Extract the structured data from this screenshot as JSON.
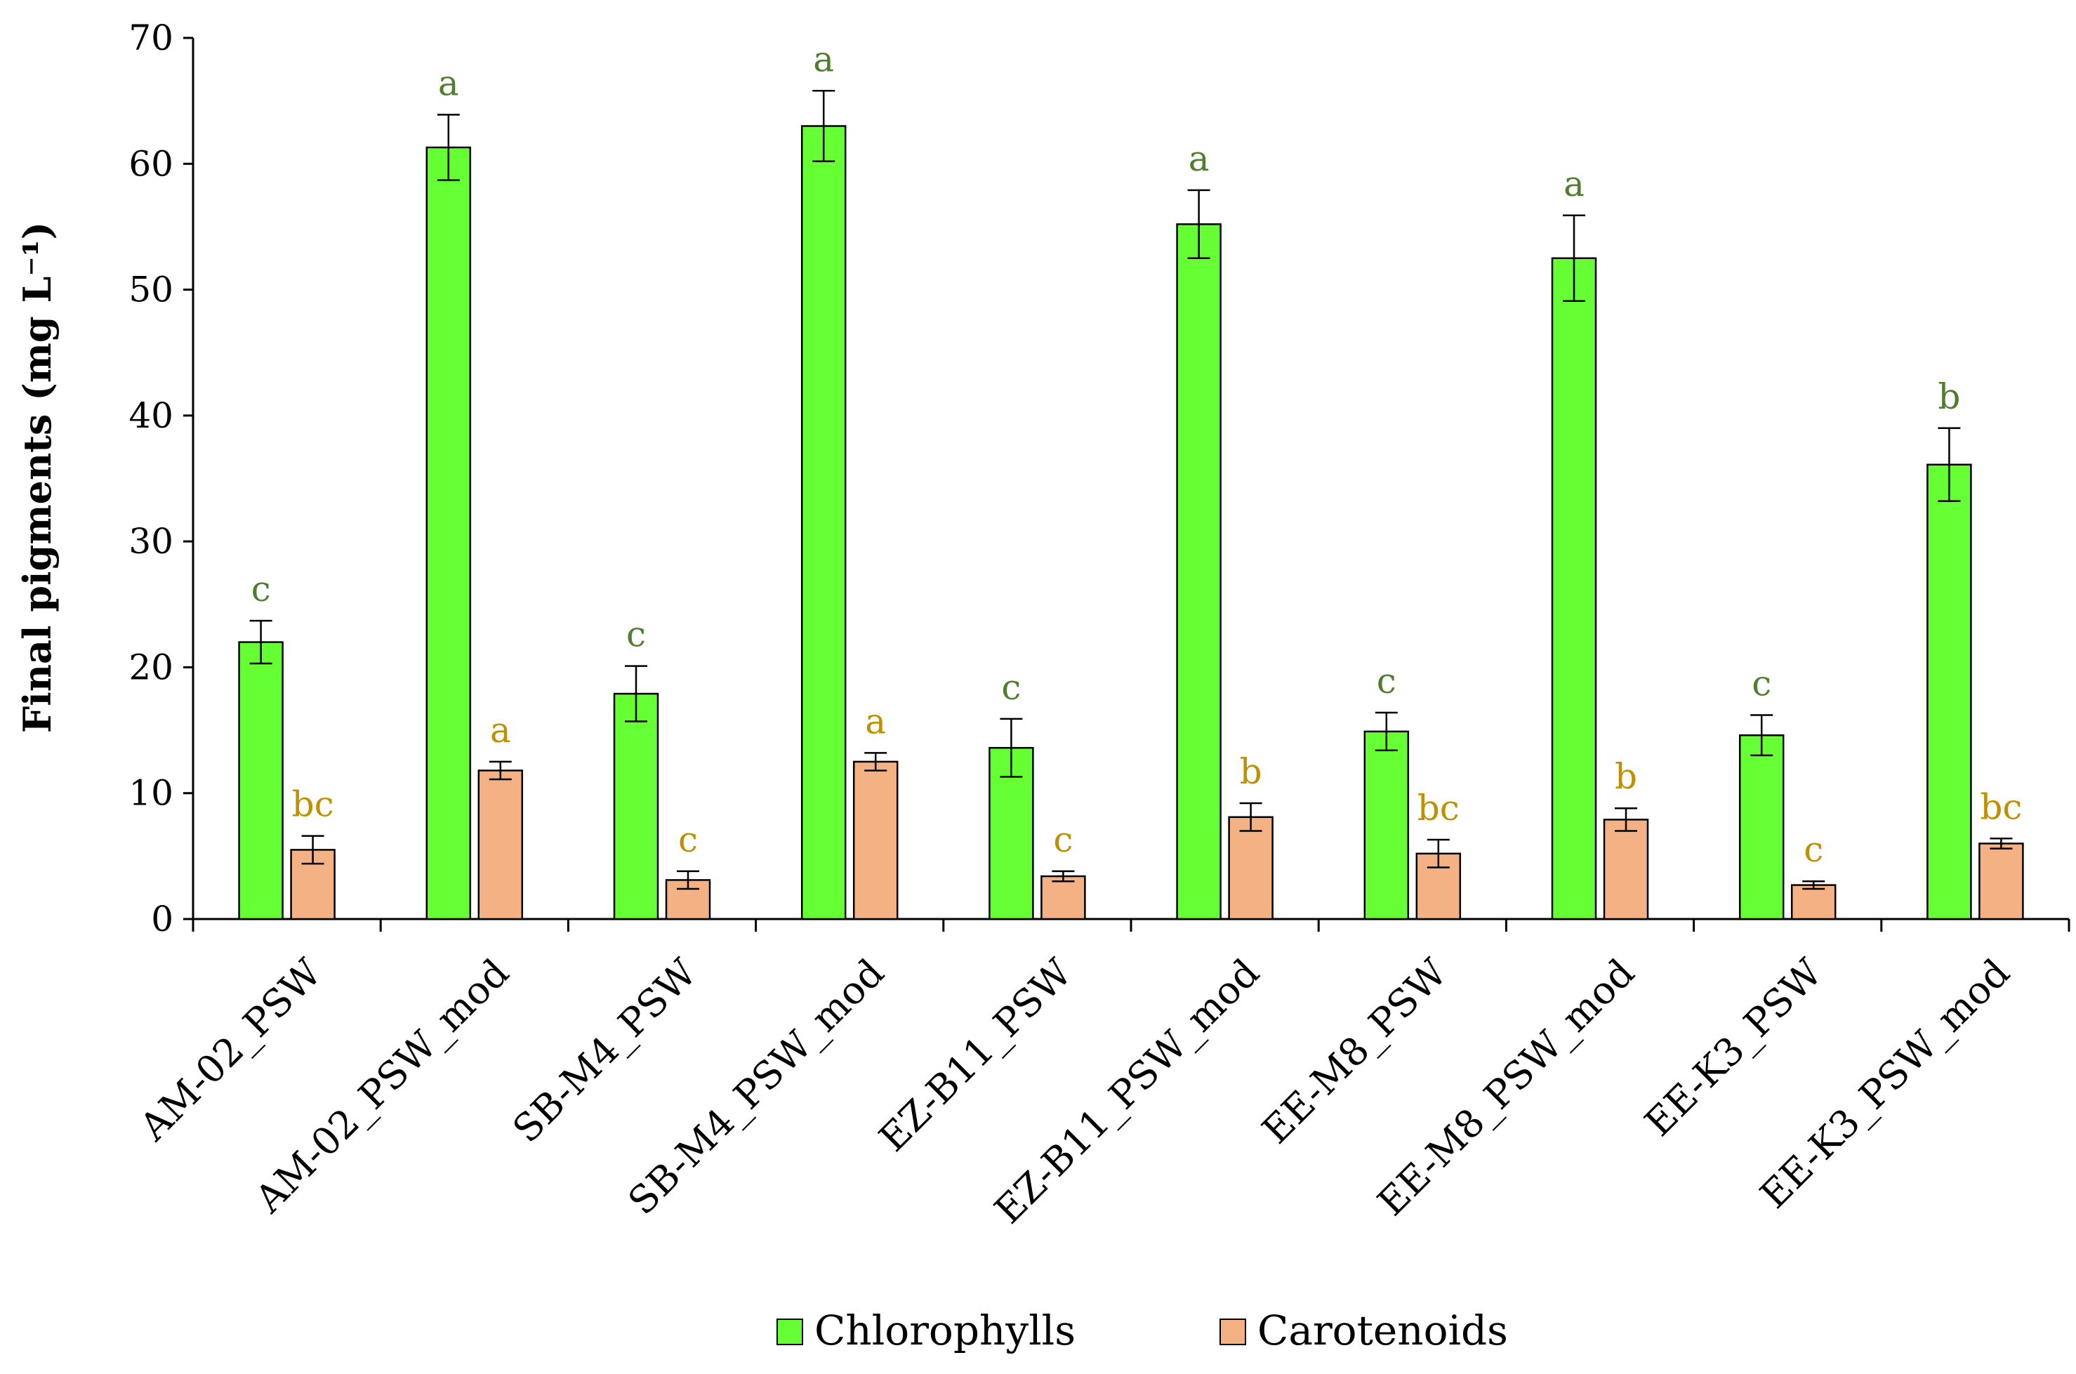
{
  "chart_data": {
    "type": "bar",
    "title": "",
    "xlabel": "",
    "ylabel": "Final pigments  (mg L⁻¹)",
    "ylim": [
      0,
      70
    ],
    "yticks": [
      0,
      10,
      20,
      30,
      40,
      50,
      60,
      70
    ],
    "grid": false,
    "legend_position": "bottom",
    "categories": [
      "AM-02_PSW",
      "AM-02_PSW_mod",
      "SB-M4_PSW",
      "SB-M4_PSW_mod",
      "EZ-B11_PSW",
      "EZ-B11_PSW_mod",
      "EE-M8_PSW",
      "EE-M8_PSW_mod",
      "EE-K3_PSW",
      "EE-K3_PSW_mod"
    ],
    "series": [
      {
        "name": "Chlorophylls",
        "color": "#66ff33",
        "label_color": "#4f7f2e",
        "values": [
          22.0,
          61.3,
          17.9,
          63.0,
          13.6,
          55.2,
          14.9,
          52.5,
          14.6,
          36.1
        ],
        "errors": [
          1.7,
          2.6,
          2.2,
          2.8,
          2.3,
          2.7,
          1.5,
          3.4,
          1.6,
          2.9
        ],
        "letters": [
          "c",
          "a",
          "c",
          "a",
          "c",
          "a",
          "c",
          "a",
          "c",
          "b"
        ]
      },
      {
        "name": "Carotenoids",
        "color": "#f4b183",
        "label_color": "#bf9000",
        "values": [
          5.5,
          11.8,
          3.1,
          12.5,
          3.4,
          8.1,
          5.2,
          7.9,
          2.7,
          6.0
        ],
        "errors": [
          1.1,
          0.7,
          0.7,
          0.7,
          0.4,
          1.1,
          1.1,
          0.9,
          0.3,
          0.4
        ],
        "letters": [
          "bc",
          "a",
          "c",
          "a",
          "c",
          "b",
          "bc",
          "b",
          "c",
          "bc"
        ]
      }
    ]
  }
}
